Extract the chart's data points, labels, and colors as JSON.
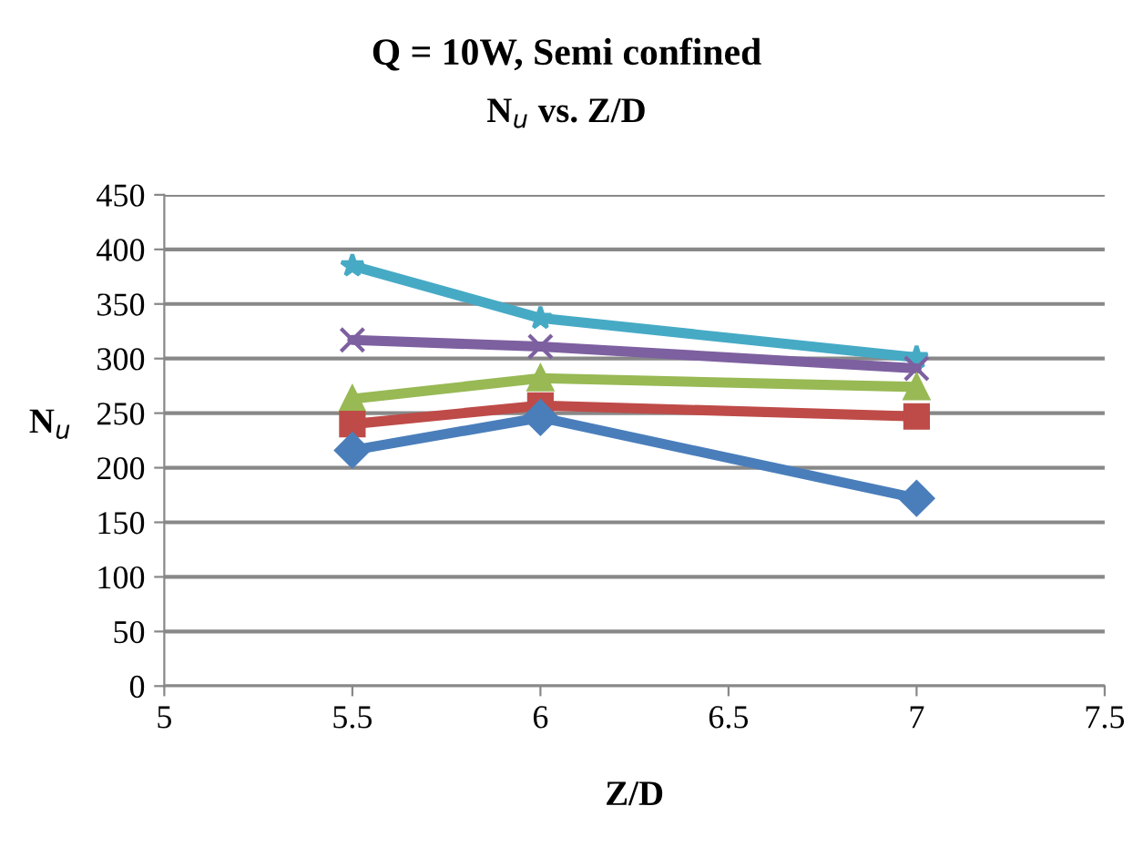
{
  "chart_data": {
    "type": "line",
    "title": "Q = 10W, Semi confined",
    "subtitle": "N$_{u}$ vs. Z/D",
    "xlabel": "Z/D",
    "ylabel": "N$_{u}$",
    "x": [
      5.5,
      6,
      7
    ],
    "series": [
      {
        "color": "#4a7ebb",
        "marker": "diamond",
        "values": [
          216,
          246,
          172
        ]
      },
      {
        "color": "#be4b48",
        "marker": "square",
        "values": [
          240,
          257,
          247
        ]
      },
      {
        "color": "#98b954",
        "marker": "triangle",
        "values": [
          263,
          282,
          274
        ]
      },
      {
        "color": "#7d60a0",
        "marker": "cross",
        "values": [
          317,
          311,
          291
        ]
      },
      {
        "color": "#46aac5",
        "marker": "star",
        "values": [
          385,
          337,
          301
        ]
      }
    ],
    "xlim": [
      5,
      7.5
    ],
    "xticks": [
      5,
      5.5,
      6,
      6.5,
      7,
      7.5
    ],
    "ylim": [
      0,
      450
    ],
    "yticks": [
      0,
      50,
      100,
      150,
      200,
      250,
      300,
      350,
      400,
      450
    ],
    "grid": "y",
    "line_style": "solid"
  }
}
